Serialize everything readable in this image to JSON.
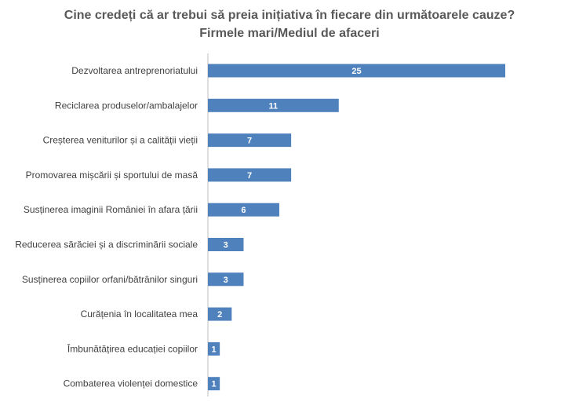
{
  "chart_data": {
    "type": "bar",
    "orientation": "horizontal",
    "title": "Cine credeți că ar trebui să preia inițiativa în fiecare din următoarele cauze?",
    "subtitle": "Firmele mari/Mediul de afaceri",
    "categories": [
      "Dezvoltarea antreprenoriatului",
      "Reciclarea produselor/ambalajelor",
      "Creșterea veniturilor și a calității vieții",
      "Promovarea mișcării și sportului de masă",
      "Susținerea imaginii României în afara țării",
      "Reducerea sărăciei și a discriminării sociale",
      "Susținerea copiilor orfani/bătrânilor singuri",
      "Curățenia în localitatea mea",
      "Îmbunătățirea educației copiilor",
      "Combaterea violenței domestice"
    ],
    "values": [
      25,
      11,
      7,
      7,
      6,
      3,
      3,
      2,
      1,
      1
    ],
    "data_labels": [
      "25",
      "11",
      "7",
      "7",
      "6",
      "3",
      "3",
      "2",
      "1",
      "1"
    ],
    "xlim": [
      0,
      26
    ],
    "grid": false,
    "legend": "none",
    "colors": {
      "bar": "#4f81bd",
      "axis": "#bfbfbf",
      "text": "#404040",
      "title": "#595959"
    }
  }
}
